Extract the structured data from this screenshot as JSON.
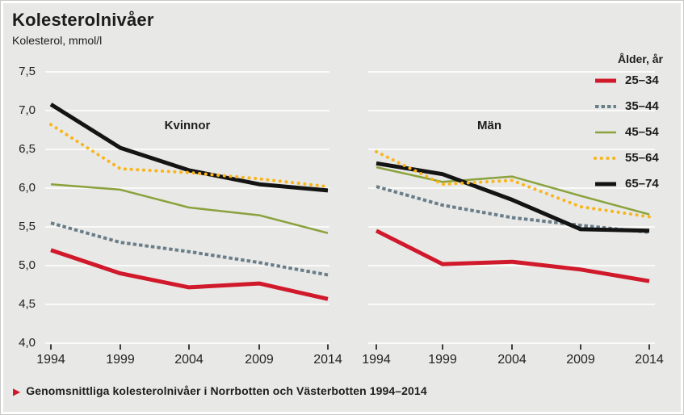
{
  "title": "Kolesterolnivåer",
  "subtitle": "Kolesterol, mmol/l",
  "caption": "Genomsnittliga kolesterolnivåer i Norrbotten och Västerbotten 1994–2014",
  "caption_marker_color": "#d0192a",
  "background_color": "#e8e8e6",
  "gridline_color": "#ffffff",
  "legend": {
    "header": "Ålder, år",
    "items": [
      {
        "label": "25–34",
        "color": "#d0192a",
        "style": "solid-thick"
      },
      {
        "label": "35–44",
        "color": "#6a7e89",
        "style": "dashed"
      },
      {
        "label": "45–54",
        "color": "#8aa23c",
        "style": "solid-thin"
      },
      {
        "label": "55–64",
        "color": "#f9b51b",
        "style": "dotted"
      },
      {
        "label": "65–74",
        "color": "#141414",
        "style": "solid-thick"
      }
    ]
  },
  "chart_data": {
    "type": "line",
    "x": [
      1994,
      1999,
      2004,
      2009,
      2014
    ],
    "xtick_labels": [
      "1994",
      "1999",
      "2004",
      "2009",
      "2014"
    ],
    "ylabel": "Kolesterol, mmol/l",
    "ylim": [
      4.0,
      7.5
    ],
    "ytick_step": 0.5,
    "ytick_labels_top_to_bottom": [
      "7,5",
      "7,0",
      "6,5",
      "6,0",
      "5,5",
      "5,0",
      "4,5",
      "4,0"
    ],
    "grid": true,
    "legend_position": "top-right",
    "panels": [
      {
        "label": "Kvinnor",
        "series": [
          {
            "name": "25–34",
            "values": [
              5.2,
              4.9,
              4.72,
              4.77,
              4.57
            ]
          },
          {
            "name": "35–44",
            "values": [
              5.55,
              5.3,
              5.18,
              5.04,
              4.88
            ]
          },
          {
            "name": "45–54",
            "values": [
              6.05,
              5.98,
              5.75,
              5.65,
              5.42
            ]
          },
          {
            "name": "55–64",
            "values": [
              6.82,
              6.25,
              6.2,
              6.12,
              6.02
            ]
          },
          {
            "name": "65–74",
            "values": [
              7.08,
              6.52,
              6.23,
              6.05,
              5.97
            ]
          }
        ]
      },
      {
        "label": "Män",
        "series": [
          {
            "name": "25–34",
            "values": [
              5.45,
              5.02,
              5.05,
              4.95,
              4.8
            ]
          },
          {
            "name": "35–44",
            "values": [
              6.02,
              5.78,
              5.62,
              5.52,
              5.43
            ]
          },
          {
            "name": "45–54",
            "values": [
              6.27,
              6.08,
              6.15,
              5.9,
              5.66
            ]
          },
          {
            "name": "55–64",
            "values": [
              6.47,
              6.05,
              6.1,
              5.76,
              5.63
            ]
          },
          {
            "name": "65–74",
            "values": [
              6.32,
              6.18,
              5.85,
              5.47,
              5.45
            ]
          }
        ]
      }
    ]
  }
}
